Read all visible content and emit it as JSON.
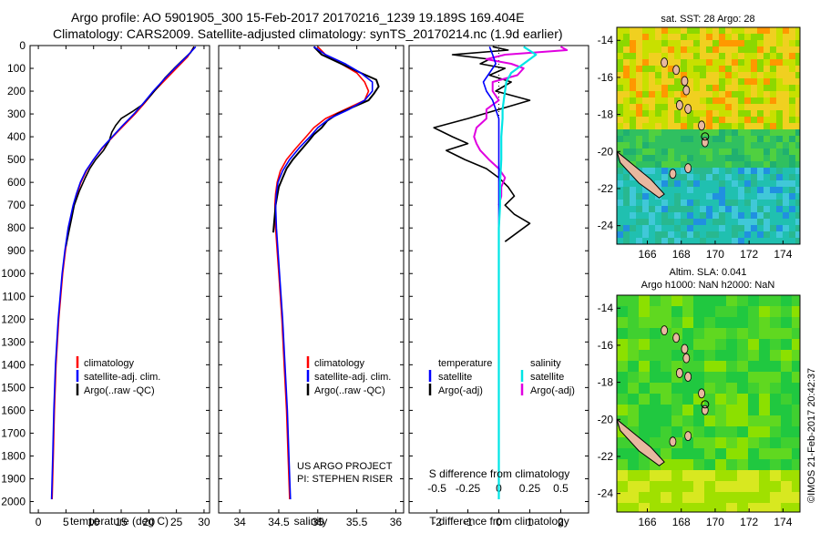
{
  "header": {
    "line1": "Argo profile: AO 5901905_300 15-Feb-2017 20170216_1239 19.189S 169.404E",
    "line2": "Climatology: CARS2009. Satellite-adjusted climatology: synTS_20170214.nc (1.9d earlier)"
  },
  "colors": {
    "climatology": "#ff0000",
    "satellite": "#0000ff",
    "argo": "#000000",
    "t_satellite": "#0000ff",
    "s_satellite": "#00e5e5",
    "s_argo": "#e000e0"
  },
  "chart_data": [
    {
      "type": "line",
      "panel": "temperature",
      "xlabel": "temperature (deg C)",
      "x_ticks": [
        "0",
        "5",
        "10",
        "15",
        "20",
        "25",
        "30"
      ],
      "xlim": [
        -1.5,
        31
      ],
      "ylim": [
        0,
        2050
      ],
      "y_ticks": [
        "0",
        "100",
        "200",
        "300",
        "400",
        "500",
        "600",
        "700",
        "800",
        "900",
        "1000",
        "1100",
        "1200",
        "1300",
        "1400",
        "1500",
        "1600",
        "1700",
        "1800",
        "1900",
        "2000"
      ],
      "legend": [
        "climatology",
        "satellite-adj. clim.",
        "Argo(..raw -QC)"
      ],
      "series": [
        {
          "name": "climatology",
          "y": [
            5,
            50,
            100,
            150,
            200,
            250,
            300,
            350,
            400,
            450,
            500,
            550,
            600,
            650,
            700,
            800,
            900,
            1000,
            1200,
            1400,
            1600,
            1800,
            1990
          ],
          "x": [
            28.2,
            27,
            25,
            23,
            21,
            19.3,
            17.5,
            15.5,
            13.5,
            11.6,
            10,
            8.7,
            7.7,
            7,
            6.4,
            5.5,
            4.9,
            4.4,
            3.7,
            3.2,
            2.9,
            2.7,
            2.5
          ]
        },
        {
          "name": "satellite-adj. clim.",
          "y": [
            5,
            50,
            100,
            150,
            200,
            250,
            300,
            350,
            400,
            450,
            500,
            550,
            600,
            650,
            700,
            800,
            900,
            1000,
            1200,
            1400,
            1600,
            1800,
            1990
          ],
          "x": [
            28.5,
            26.8,
            24.7,
            22.7,
            20.8,
            19.1,
            17.3,
            15.3,
            13.4,
            11.5,
            10,
            8.6,
            7.6,
            6.9,
            6.3,
            5.4,
            4.8,
            4.3,
            3.6,
            3.1,
            2.8,
            2.6,
            2.4
          ]
        },
        {
          "name": "Argo(..raw -QC)",
          "y": [
            5,
            30,
            60,
            100,
            140,
            180,
            220,
            260,
            290,
            320,
            350,
            380,
            420,
            460,
            500,
            540,
            580,
            640,
            700,
            760,
            820,
            880
          ],
          "x": [
            28.2,
            27.6,
            26.3,
            24.6,
            23,
            21.7,
            20.3,
            18.8,
            17,
            15,
            14,
            13.3,
            12.8,
            11.8,
            10.4,
            9.3,
            8.5,
            7.4,
            6.5,
            6,
            5.5,
            5
          ]
        }
      ]
    },
    {
      "type": "line",
      "panel": "salinity",
      "xlabel": "salinity",
      "x_ticks": [
        "34",
        "34.5",
        "35",
        "35.5",
        "36"
      ],
      "xlim": [
        33.73,
        36.1
      ],
      "ylim": [
        0,
        2050
      ],
      "legend": [
        "climatology",
        "satellite-adj. clim.",
        "Argo(..raw -QC)"
      ],
      "series": [
        {
          "name": "climatology",
          "y": [
            5,
            40,
            80,
            120,
            160,
            200,
            240,
            280,
            320,
            360,
            400,
            450,
            500,
            550,
            600,
            650,
            700,
            800,
            900,
            1000,
            1200,
            1400,
            1600,
            1800,
            1990
          ],
          "x": [
            35.0,
            35.1,
            35.3,
            35.5,
            35.6,
            35.65,
            35.6,
            35.35,
            35.1,
            34.95,
            34.85,
            34.72,
            34.6,
            34.52,
            34.48,
            34.46,
            34.45,
            34.46,
            34.48,
            34.5,
            34.54,
            34.57,
            34.6,
            34.62,
            34.64
          ]
        },
        {
          "name": "satellite-adj. clim.",
          "y": [
            5,
            40,
            80,
            120,
            160,
            200,
            240,
            280,
            320,
            360,
            400,
            450,
            500,
            550,
            600,
            650,
            700,
            800,
            900,
            1000,
            1200,
            1400,
            1600,
            1800,
            1990
          ],
          "x": [
            34.95,
            35.1,
            35.35,
            35.55,
            35.7,
            35.7,
            35.6,
            35.4,
            35.15,
            35.0,
            34.9,
            34.76,
            34.64,
            34.55,
            34.49,
            34.47,
            34.46,
            34.47,
            34.49,
            34.51,
            34.55,
            34.58,
            34.61,
            34.63,
            34.65
          ]
        },
        {
          "name": "Argo(..raw -QC)",
          "y": [
            5,
            40,
            80,
            120,
            150,
            180,
            210,
            240,
            270,
            300,
            330,
            360,
            390,
            420,
            460,
            500,
            540,
            580,
            620,
            660,
            700,
            740,
            780,
            820
          ],
          "x": [
            34.95,
            35.05,
            35.3,
            35.55,
            35.75,
            35.78,
            35.72,
            35.65,
            35.45,
            35.25,
            35.12,
            35.05,
            34.95,
            34.88,
            34.78,
            34.68,
            34.6,
            34.55,
            34.5,
            34.48,
            34.46,
            34.45,
            34.44,
            34.43
          ]
        }
      ]
    },
    {
      "type": "line",
      "panel": "difference",
      "xlabel_top": "S difference from climatology",
      "xlabel_bottom": "T difference from climatology",
      "s_ticks": [
        "-0.5",
        "-0.25",
        "0",
        "0.25",
        "0.5"
      ],
      "t_ticks": [
        "-2",
        "-1",
        "0",
        "1",
        "2"
      ],
      "tlim": [
        -2.9,
        2.9
      ],
      "ylim": [
        0,
        2050
      ],
      "legend_t_title": "temperature",
      "legend_s_title": "salinity",
      "legend_t": [
        "satellite",
        "Argo(-adj)"
      ],
      "legend_s": [
        "satellite",
        "Argo(-adj)"
      ],
      "series": [
        {
          "name": "T satellite",
          "y": [
            5,
            40,
            80,
            120,
            160,
            200,
            240,
            280,
            320,
            400,
            500,
            600,
            700,
            800,
            900,
            1000,
            1200,
            1400,
            1600,
            1800,
            1990
          ],
          "x": [
            -0.3,
            -0.2,
            -0.1,
            -0.3,
            -0.5,
            -0.4,
            -0.2,
            -0.1,
            0,
            0,
            0,
            0,
            0,
            0,
            0,
            0,
            0,
            0,
            0,
            0,
            0
          ]
        },
        {
          "name": "T Argo",
          "y": [
            5,
            20,
            40,
            60,
            80,
            100,
            130,
            160,
            200,
            240,
            280,
            320,
            360,
            400,
            430,
            460,
            500,
            540,
            580,
            620,
            660,
            700,
            740,
            780,
            820,
            860
          ],
          "x": [
            -0.2,
            0.3,
            -1.5,
            -0.3,
            -0.6,
            0.2,
            -0.3,
            0.4,
            -0.1,
            1.0,
            0,
            -1.0,
            -2.1,
            -1.5,
            -1.0,
            -1.7,
            -1.1,
            -0.4,
            0,
            0.3,
            0.5,
            0.2,
            0.5,
            1.0,
            0.6,
            0.2
          ]
        },
        {
          "name": "S satellite",
          "y": [
            5,
            40,
            80,
            120,
            160,
            200,
            240,
            280,
            320,
            400,
            500,
            600,
            700,
            800,
            900,
            1000,
            1200,
            1400,
            1600,
            1800,
            1990
          ],
          "x": [
            0.2,
            0.3,
            0.2,
            0.1,
            0.06,
            0.05,
            0.04,
            0.03,
            0.03,
            0.02,
            0.02,
            0.01,
            0.01,
            0,
            0,
            0,
            0,
            0,
            0,
            0,
            0
          ]
        },
        {
          "name": "S Argo",
          "y": [
            5,
            20,
            40,
            60,
            80,
            100,
            130,
            160,
            200,
            240,
            280,
            320,
            360,
            400,
            430,
            460,
            500,
            540,
            580,
            620,
            660,
            700
          ],
          "x": [
            0.5,
            0.55,
            0.05,
            -0.1,
            0.1,
            0.2,
            0.15,
            -0.05,
            -0.05,
            0,
            -0.1,
            -0.1,
            -0.18,
            -0.2,
            -0.18,
            -0.15,
            -0.08,
            0,
            0.05,
            0.02,
            0.02,
            0
          ]
        }
      ]
    },
    {
      "type": "heatmap",
      "panel": "map_sst",
      "title": "sat. SST: 28 Argo: 28",
      "x_ticks": [
        "166",
        "168",
        "170",
        "172",
        "174"
      ],
      "y_ticks": [
        "-14",
        "-16",
        "-18",
        "-20",
        "-22",
        "-24"
      ],
      "xlim": [
        164.2,
        175
      ],
      "ylim": [
        -25,
        -13.3
      ],
      "argo_position": [
        169.404,
        -19.189
      ]
    },
    {
      "type": "heatmap",
      "panel": "map_sla",
      "title1": "Altim. SLA: 0.041",
      "title2": "Argo h1000: NaN h2000: NaN",
      "x_ticks": [
        "166",
        "168",
        "170",
        "172",
        "174"
      ],
      "y_ticks": [
        "-14",
        "-16",
        "-18",
        "-20",
        "-22",
        "-24"
      ],
      "xlim": [
        164.2,
        175
      ],
      "ylim": [
        -25,
        -13.3
      ],
      "argo_position": [
        169.404,
        -19.189
      ]
    }
  ],
  "annotations": {
    "project": "US ARGO PROJECT",
    "pi": "PI: STEPHEN RISER",
    "watermark": "©IMOS 21-Feb-2017 20:42:37"
  }
}
